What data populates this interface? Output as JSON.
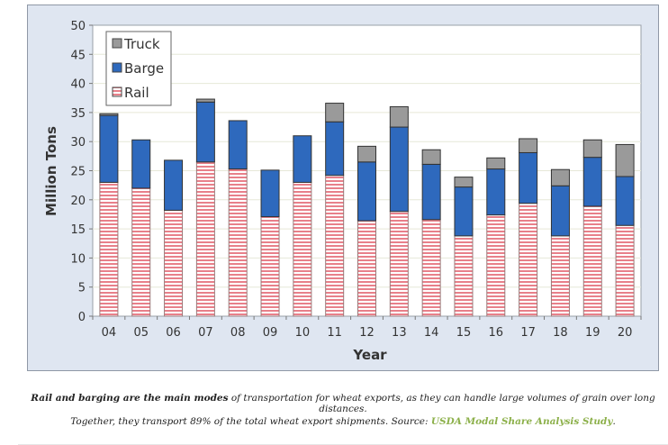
{
  "chart_data": {
    "type": "bar",
    "stacked": true,
    "title": "",
    "xlabel": "Year",
    "ylabel": "Million Tons",
    "ylim": [
      0,
      50
    ],
    "yticks": [
      0,
      5,
      10,
      15,
      20,
      25,
      30,
      35,
      40,
      45,
      50
    ],
    "grid": true,
    "legend_placement": "top-left",
    "categories": [
      "04",
      "05",
      "06",
      "07",
      "08",
      "09",
      "10",
      "11",
      "12",
      "13",
      "14",
      "15",
      "16",
      "17",
      "18",
      "19",
      "20"
    ],
    "series": [
      {
        "name": "Rail",
        "color": "#e8808a",
        "values": [
          23,
          22,
          18.2,
          26.5,
          25.3,
          17.1,
          23,
          24.2,
          16.4,
          18,
          16.6,
          13.8,
          17.4,
          19.4,
          13.8,
          18.9,
          15.6
        ]
      },
      {
        "name": "Barge",
        "color": "#2e69bd",
        "values": [
          11.5,
          8.3,
          8.6,
          10.3,
          8.3,
          8,
          8,
          9.2,
          10.1,
          14.5,
          9.5,
          8.4,
          7.9,
          8.7,
          8.6,
          8.4,
          8.4
        ]
      },
      {
        "name": "Truck",
        "color": "#9a9a9a",
        "values": [
          0.3,
          0,
          0,
          0.5,
          0,
          0,
          0,
          3.2,
          2.7,
          3.5,
          2.5,
          1.7,
          1.9,
          2.4,
          2.8,
          3,
          5.5
        ]
      }
    ]
  },
  "caption": {
    "bold": "Rail and barging are the main modes",
    "line1_rest": " of transportation for wheat exports, as they can handle large volumes of grain over long distances.",
    "line2": "Together, they transport 89% of the total wheat export shipments. Source: ",
    "link": "USDA Modal Share Analysis Study",
    "end": "."
  }
}
